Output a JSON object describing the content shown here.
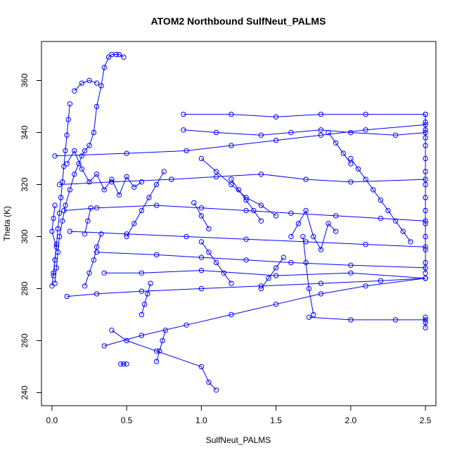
{
  "chart_data": {
    "type": "scatter",
    "title": "ATOM2 Northbound SulfNeut_PALMS",
    "xlabel": "SulfNeut_PALMS",
    "ylabel": "Theta (K)",
    "xlim": [
      -0.07,
      2.57
    ],
    "ylim": [
      235,
      375
    ],
    "x_ticks": [
      0.0,
      0.5,
      1.0,
      1.5,
      2.0,
      2.5
    ],
    "x_tick_labels": [
      "0.0",
      "0.5",
      "1.0",
      "1.5",
      "2.0",
      "2.5"
    ],
    "y_ticks": [
      240,
      260,
      280,
      300,
      320,
      340,
      360
    ],
    "y_tick_labels": [
      "240",
      "260",
      "280",
      "300",
      "320",
      "340",
      "360"
    ],
    "grid": false,
    "legend": "none",
    "series_color": "#0000ff",
    "marker": "open-circle",
    "connect_points": true,
    "series": [
      {
        "x": [
          0.02,
          0.03,
          0.04,
          0.05,
          0.07,
          0.09,
          0.12,
          0.15,
          0.18,
          0.2,
          0.22,
          0.25,
          0.28,
          0.3,
          0.33,
          0.35,
          0.38,
          0.4,
          0.43,
          0.45,
          0.48
        ],
        "y": [
          282,
          288,
          294,
          300,
          306,
          312,
          318,
          324,
          328,
          331,
          333,
          335,
          340,
          350,
          358,
          365,
          369,
          370,
          370,
          370,
          369
        ]
      },
      {
        "x": [
          0.01,
          0.02,
          0.03,
          0.04,
          0.05,
          0.06,
          0.07,
          0.08,
          0.09,
          0.1,
          0.11,
          0.12
        ],
        "y": [
          285,
          291,
          297,
          303,
          309,
          315,
          321,
          327,
          333,
          339,
          345,
          351
        ]
      },
      {
        "x": [
          0.1,
          0.15,
          0.2,
          0.25,
          0.3,
          0.35,
          0.4,
          0.45,
          0.5,
          0.55,
          0.6
        ],
        "y": [
          328,
          333,
          326,
          321,
          324,
          318,
          322,
          316,
          323,
          319,
          321
        ]
      },
      {
        "x": [
          0.02,
          0.5,
          0.9,
          1.2,
          1.5,
          1.8,
          2.1,
          2.5
        ],
        "y": [
          331,
          332,
          333,
          335,
          337,
          339,
          341,
          343
        ]
      },
      {
        "x": [
          0.05,
          0.4,
          0.8,
          1.1,
          1.4,
          1.7,
          2.0,
          2.5
        ],
        "y": [
          320,
          321,
          322,
          323,
          324,
          322,
          321,
          322
        ]
      },
      {
        "x": [
          0.08,
          0.3,
          0.7,
          1.0,
          1.3,
          1.6,
          1.9,
          2.2,
          2.5
        ],
        "y": [
          310,
          311,
          312,
          311,
          310,
          309,
          308,
          307,
          306
        ]
      },
      {
        "x": [
          0.12,
          0.5,
          0.9,
          1.3,
          1.7,
          2.1,
          2.5
        ],
        "y": [
          302,
          301,
          300,
          299,
          298,
          297,
          296
        ]
      },
      {
        "x": [
          0.3,
          0.7,
          1.0,
          1.3,
          1.6,
          2.0,
          2.5
        ],
        "y": [
          294,
          293,
          292,
          291,
          290,
          289,
          288
        ]
      },
      {
        "x": [
          0.35,
          0.6,
          1.0,
          1.5,
          2.0,
          2.5
        ],
        "y": [
          286,
          286,
          287,
          285,
          286,
          284
        ]
      },
      {
        "x": [
          0.4,
          0.5,
          0.7,
          1.0,
          1.05,
          1.1
        ],
        "y": [
          264,
          260,
          256,
          250,
          244,
          241
        ]
      },
      {
        "x": [
          0.35,
          0.6,
          0.9,
          1.2,
          1.5,
          1.8,
          2.1,
          2.5
        ],
        "y": [
          258,
          262,
          266,
          270,
          274,
          278,
          281,
          284
        ]
      },
      {
        "x": [
          0.88,
          1.2,
          1.5,
          1.8,
          2.1,
          2.5
        ],
        "y": [
          347,
          347,
          346,
          347,
          347,
          347
        ]
      },
      {
        "x": [
          0.88,
          1.1,
          1.4,
          1.6,
          1.8,
          2.0,
          2.3,
          2.5
        ],
        "y": [
          341,
          340,
          339,
          340,
          341,
          340,
          339,
          340
        ]
      },
      {
        "x": [
          1.0,
          1.1,
          1.2,
          1.3,
          1.4,
          1.5
        ],
        "y": [
          330,
          325,
          320,
          315,
          312,
          308
        ]
      },
      {
        "x": [
          1.0,
          1.05,
          1.1,
          1.15,
          1.2
        ],
        "y": [
          298,
          294,
          290,
          286,
          282
        ]
      },
      {
        "x": [
          1.68,
          1.7,
          1.72,
          1.75
        ],
        "y": [
          300,
          290,
          280,
          270
        ]
      },
      {
        "x": [
          1.72,
          2.0,
          2.3,
          2.5
        ],
        "y": [
          269,
          268,
          268,
          268
        ]
      },
      {
        "x": [
          2.5,
          2.5,
          2.5,
          2.5,
          2.5,
          2.5,
          2.5,
          2.5,
          2.5,
          2.5,
          2.5,
          2.5,
          2.5,
          2.5,
          2.5
        ],
        "y": [
          286,
          290,
          295,
          300,
          305,
          310,
          315,
          320,
          325,
          330,
          335,
          338,
          341,
          344,
          347
        ]
      },
      {
        "x": [
          2.5,
          2.5,
          2.5
        ],
        "y": [
          265,
          267,
          269
        ]
      },
      {
        "x": [
          0.0,
          0.01,
          0.02,
          0.03,
          0.0,
          0.01,
          0.02
        ],
        "y": [
          281,
          286,
          291,
          296,
          302,
          307,
          312
        ]
      },
      {
        "x": [
          0.22,
          0.25,
          0.28,
          0.3,
          0.33
        ],
        "y": [
          281,
          286,
          291,
          296,
          301
        ]
      },
      {
        "x": [
          0.15,
          0.2,
          0.25,
          0.3
        ],
        "y": [
          356,
          359,
          360,
          359
        ]
      },
      {
        "x": [
          0.5,
          0.55,
          0.6,
          0.65,
          0.7,
          0.75
        ],
        "y": [
          300,
          305,
          310,
          315,
          320,
          325
        ]
      },
      {
        "x": [
          0.6,
          0.62,
          0.64,
          0.66
        ],
        "y": [
          270,
          274,
          278,
          282
        ]
      },
      {
        "x": [
          1.6,
          1.65,
          1.7,
          1.75,
          1.8,
          1.85,
          1.9
        ],
        "y": [
          300,
          305,
          310,
          300,
          295,
          305,
          302
        ]
      },
      {
        "x": [
          2.0,
          2.05,
          2.1,
          2.15,
          2.2,
          2.25,
          2.3,
          2.35,
          2.4
        ],
        "y": [
          330,
          326,
          322,
          318,
          314,
          310,
          306,
          302,
          298
        ]
      },
      {
        "x": [
          1.4,
          1.45,
          1.5,
          1.55
        ],
        "y": [
          280,
          284,
          288,
          292
        ]
      },
      {
        "x": [
          0.7,
          0.72,
          0.74,
          0.76
        ],
        "y": [
          252,
          256,
          260,
          264
        ]
      },
      {
        "x": [
          0.46,
          0.48,
          0.5
        ],
        "y": [
          251,
          251,
          251
        ]
      },
      {
        "x": [
          0.22,
          0.24,
          0.26
        ],
        "y": [
          301,
          306,
          311
        ]
      },
      {
        "x": [
          0.1,
          0.3,
          0.6,
          1.0,
          1.4,
          1.8,
          2.2,
          2.5
        ],
        "y": [
          277,
          278,
          279,
          280,
          281,
          282,
          283,
          284
        ]
      },
      {
        "x": [
          1.2,
          1.25,
          1.3,
          1.35,
          1.4
        ],
        "y": [
          322,
          318,
          314,
          310,
          306
        ]
      },
      {
        "x": [
          0.95,
          1.0,
          1.05
        ],
        "y": [
          313,
          308,
          303
        ]
      },
      {
        "x": [
          1.85,
          1.9,
          1.95,
          2.0
        ],
        "y": [
          340,
          336,
          332,
          328
        ]
      }
    ]
  }
}
